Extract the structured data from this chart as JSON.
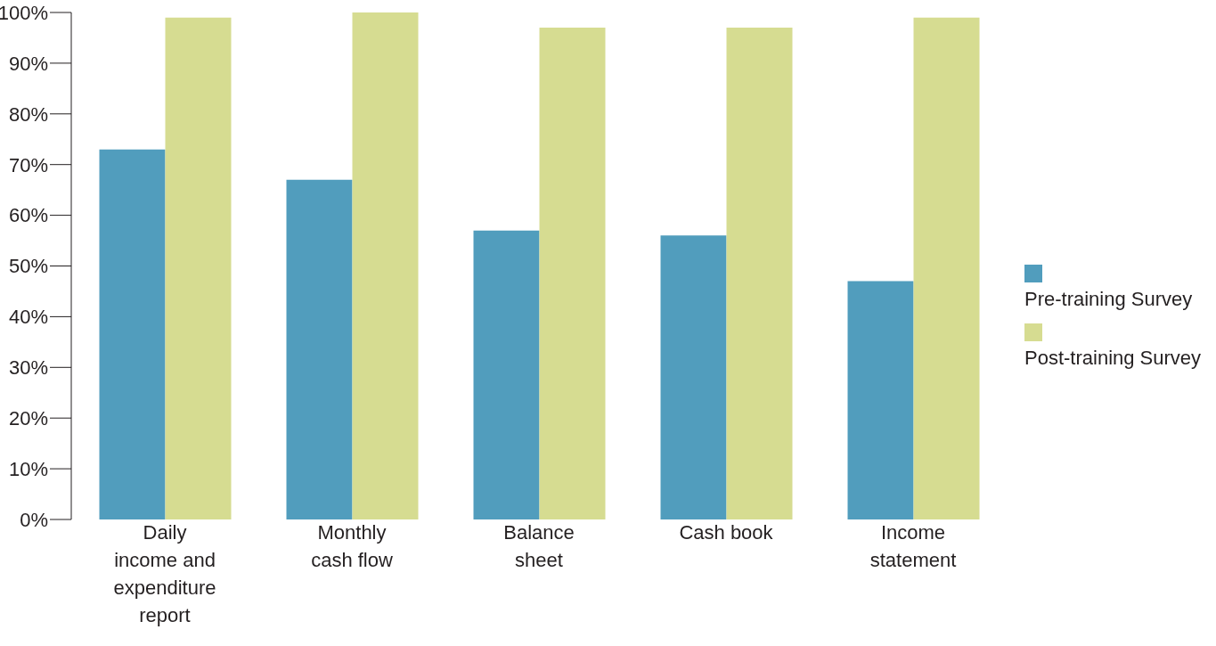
{
  "chart_data": {
    "type": "bar",
    "categories": [
      "Daily income and expenditure report",
      "Monthly cash flow",
      "Balance sheet",
      "Cash book",
      "Income statement"
    ],
    "series": [
      {
        "name": "Pre-training Survey",
        "color": "#519dbd",
        "values": [
          73,
          67,
          57,
          56,
          47
        ]
      },
      {
        "name": "Post-training Survey",
        "color": "#d6dc91",
        "values": [
          99,
          100,
          97,
          97,
          99
        ]
      }
    ],
    "ylim": [
      0,
      100
    ],
    "yticks": [
      {
        "value": 0,
        "label": "0%"
      },
      {
        "value": 10,
        "label": "10%"
      },
      {
        "value": 20,
        "label": "20%"
      },
      {
        "value": 30,
        "label": "30%"
      },
      {
        "value": 40,
        "label": "40%"
      },
      {
        "value": 50,
        "label": "50%"
      },
      {
        "value": 60,
        "label": "60%"
      },
      {
        "value": 70,
        "label": "70%"
      },
      {
        "value": 80,
        "label": "80%"
      },
      {
        "value": 90,
        "label": "90%"
      },
      {
        "value": 100,
        "label": "100%"
      }
    ],
    "grid": false,
    "legend": "right"
  }
}
